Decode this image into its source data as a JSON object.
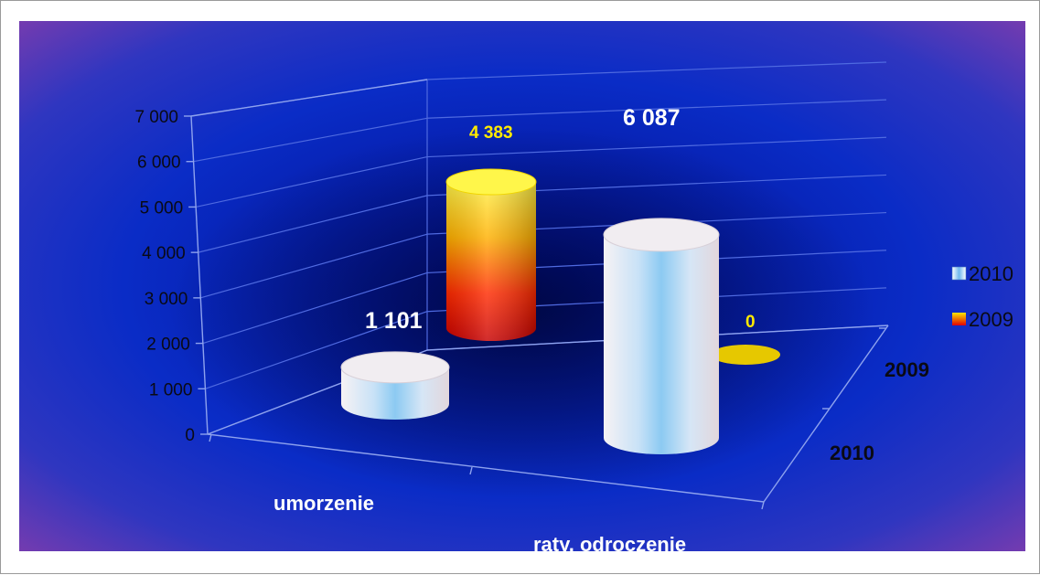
{
  "chart_data": {
    "type": "bar",
    "style": "3d-cylinder",
    "categories": [
      "umorzenie",
      "raty, odroczenie"
    ],
    "depth_labels": [
      "2010",
      "2009"
    ],
    "series": [
      {
        "name": "2010",
        "values": [
          1101,
          6087
        ],
        "labels": [
          "1 101",
          "6 087"
        ],
        "color": "#bcdcf6"
      },
      {
        "name": "2009",
        "values": [
          4383,
          0
        ],
        "labels": [
          "4 383",
          "0"
        ],
        "color": "#f2c800"
      }
    ],
    "y_ticks": [
      "0",
      "1 000",
      "2 000",
      "3 000",
      "4 000",
      "5 000",
      "6 000",
      "7 000"
    ],
    "ylim": [
      0,
      7000
    ],
    "grid": true,
    "legend_position": "right",
    "colors": {
      "background_outer": "#7a3fb0",
      "background_inner": "#0a24b8",
      "label_2010": "#ffffff",
      "label_2009": "#ffea00"
    }
  }
}
